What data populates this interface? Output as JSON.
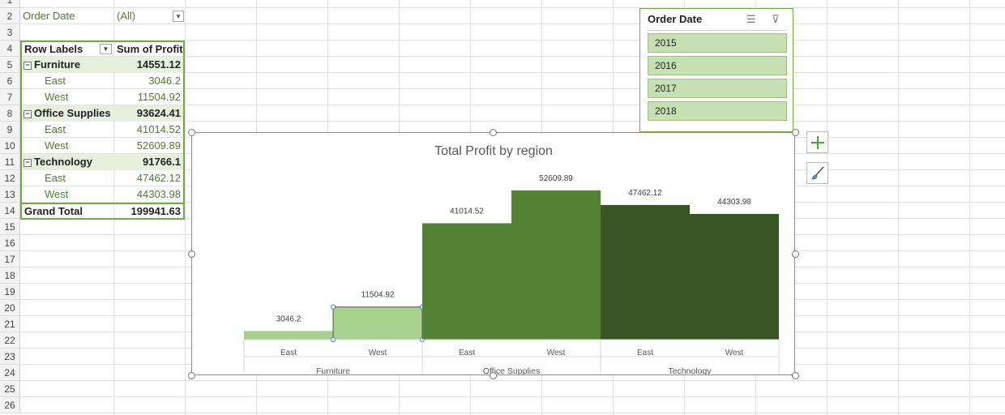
{
  "sheet": {
    "row_numbers": [
      "1",
      "2",
      "3",
      "4",
      "5",
      "6",
      "7",
      "8",
      "9",
      "10",
      "11",
      "12",
      "13",
      "14",
      "15",
      "16",
      "17",
      "18",
      "19",
      "20",
      "21",
      "22",
      "23",
      "24",
      "25",
      "26"
    ]
  },
  "pivot": {
    "filter_label": "Order Date",
    "filter_value": "(All)",
    "header_row_labels": "Row Labels",
    "header_sum": "Sum of Profit",
    "rows": [
      {
        "label": "Furniture",
        "value": "14551.12",
        "kind": "group"
      },
      {
        "label": "East",
        "value": "3046.2",
        "kind": "item"
      },
      {
        "label": "West",
        "value": "11504.92",
        "kind": "item"
      },
      {
        "label": "Office Supplies",
        "value": "93624.41",
        "kind": "group"
      },
      {
        "label": "East",
        "value": "41014.52",
        "kind": "item"
      },
      {
        "label": "West",
        "value": "52609.89",
        "kind": "item"
      },
      {
        "label": "Technology",
        "value": "91766.1",
        "kind": "group"
      },
      {
        "label": "East",
        "value": "47462.12",
        "kind": "item"
      },
      {
        "label": "West",
        "value": "44303.98",
        "kind": "item"
      }
    ],
    "grand_total_label": "Grand Total",
    "grand_total_value": "199941.63"
  },
  "slicer": {
    "title": "Order Date",
    "items": [
      "2015",
      "2016",
      "2017",
      "2018"
    ],
    "multiselect_icon": "multi-select-icon",
    "clear_filter_icon": "clear-filter-icon"
  },
  "side_buttons": {
    "elements_icon": "plus-icon",
    "styles_icon": "brush-icon"
  },
  "colors": {
    "furniture": "#a9d18e",
    "office_supplies": "#548235",
    "technology": "#375623",
    "accent": "#70ad47"
  },
  "chart_data": {
    "type": "bar",
    "title": "Total Profit by region",
    "categories": [
      "East",
      "West",
      "East",
      "West",
      "East",
      "West"
    ],
    "groups": [
      "Furniture",
      "Office Supplies",
      "Technology"
    ],
    "values": [
      3046.2,
      11504.92,
      41014.52,
      52609.89,
      47462.12,
      44303.98
    ],
    "data_labels": [
      "3046.2",
      "11504.92",
      "41014.52",
      "52609.89",
      "47462.12",
      "44303.98"
    ],
    "group_index": [
      0,
      0,
      1,
      1,
      2,
      2
    ],
    "ylim": [
      0,
      60000
    ],
    "grid": false,
    "legend": "none",
    "selected_index": 1
  }
}
